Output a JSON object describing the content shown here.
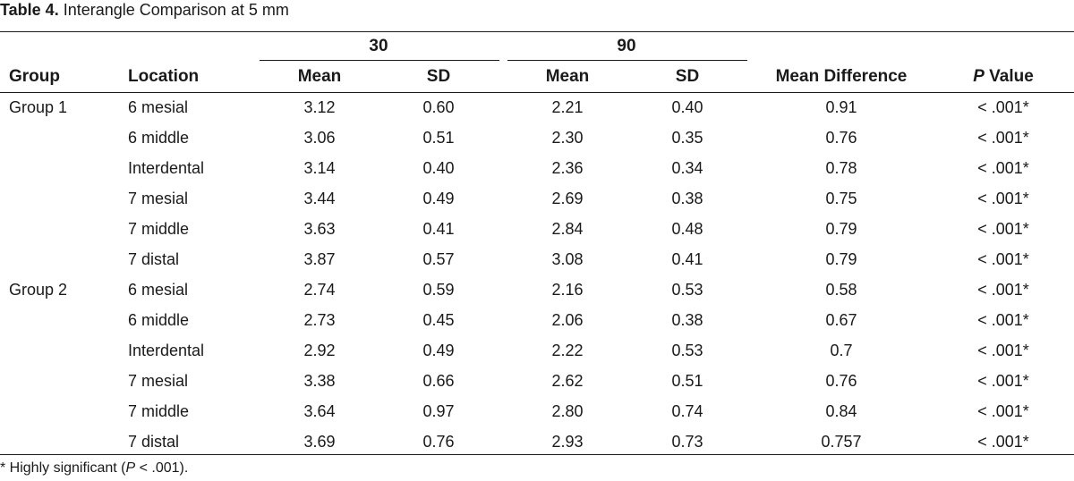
{
  "caption": {
    "label": "Table 4.",
    "title": "Interangle Comparison at 5 mm"
  },
  "header": {
    "group_30": "30",
    "group_90": "90",
    "group": "Group",
    "location": "Location",
    "mean_30": "Mean",
    "sd_30": "SD",
    "mean_90": "Mean",
    "sd_90": "SD",
    "mean_difference": "Mean Difference",
    "p_italic": "P",
    "p_rest": " Value"
  },
  "rows": [
    {
      "group": "Group 1",
      "location": "6 mesial",
      "mean30": "3.12",
      "sd30": "0.60",
      "mean90": "2.21",
      "sd90": "0.40",
      "diff": "0.91",
      "p": "< .001*"
    },
    {
      "group": "",
      "location": "6 middle",
      "mean30": "3.06",
      "sd30": "0.51",
      "mean90": "2.30",
      "sd90": "0.35",
      "diff": "0.76",
      "p": "< .001*"
    },
    {
      "group": "",
      "location": "Interdental",
      "mean30": "3.14",
      "sd30": "0.40",
      "mean90": "2.36",
      "sd90": "0.34",
      "diff": "0.78",
      "p": "< .001*"
    },
    {
      "group": "",
      "location": "7 mesial",
      "mean30": "3.44",
      "sd30": "0.49",
      "mean90": "2.69",
      "sd90": "0.38",
      "diff": "0.75",
      "p": "< .001*"
    },
    {
      "group": "",
      "location": "7 middle",
      "mean30": "3.63",
      "sd30": "0.41",
      "mean90": "2.84",
      "sd90": "0.48",
      "diff": "0.79",
      "p": "< .001*"
    },
    {
      "group": "",
      "location": "7 distal",
      "mean30": "3.87",
      "sd30": "0.57",
      "mean90": "3.08",
      "sd90": "0.41",
      "diff": "0.79",
      "p": "< .001*"
    },
    {
      "group": "Group 2",
      "location": "6 mesial",
      "mean30": "2.74",
      "sd30": "0.59",
      "mean90": "2.16",
      "sd90": "0.53",
      "diff": "0.58",
      "p": "< .001*"
    },
    {
      "group": "",
      "location": "6 middle",
      "mean30": "2.73",
      "sd30": "0.45",
      "mean90": "2.06",
      "sd90": "0.38",
      "diff": "0.67",
      "p": "< .001*"
    },
    {
      "group": "",
      "location": "Interdental",
      "mean30": "2.92",
      "sd30": "0.49",
      "mean90": "2.22",
      "sd90": "0.53",
      "diff": "0.7",
      "p": "< .001*"
    },
    {
      "group": "",
      "location": "7 mesial",
      "mean30": "3.38",
      "sd30": "0.66",
      "mean90": "2.62",
      "sd90": "0.51",
      "diff": "0.76",
      "p": "< .001*"
    },
    {
      "group": "",
      "location": "7 middle",
      "mean30": "3.64",
      "sd30": "0.97",
      "mean90": "2.80",
      "sd90": "0.74",
      "diff": "0.84",
      "p": "< .001*"
    },
    {
      "group": "",
      "location": "7 distal",
      "mean30": "3.69",
      "sd30": "0.76",
      "mean90": "2.93",
      "sd90": "0.73",
      "diff": "0.757",
      "p": "< .001*"
    }
  ],
  "footnote": {
    "before": "* Highly significant (",
    "p_italic": "P",
    "after": " < .001)."
  }
}
